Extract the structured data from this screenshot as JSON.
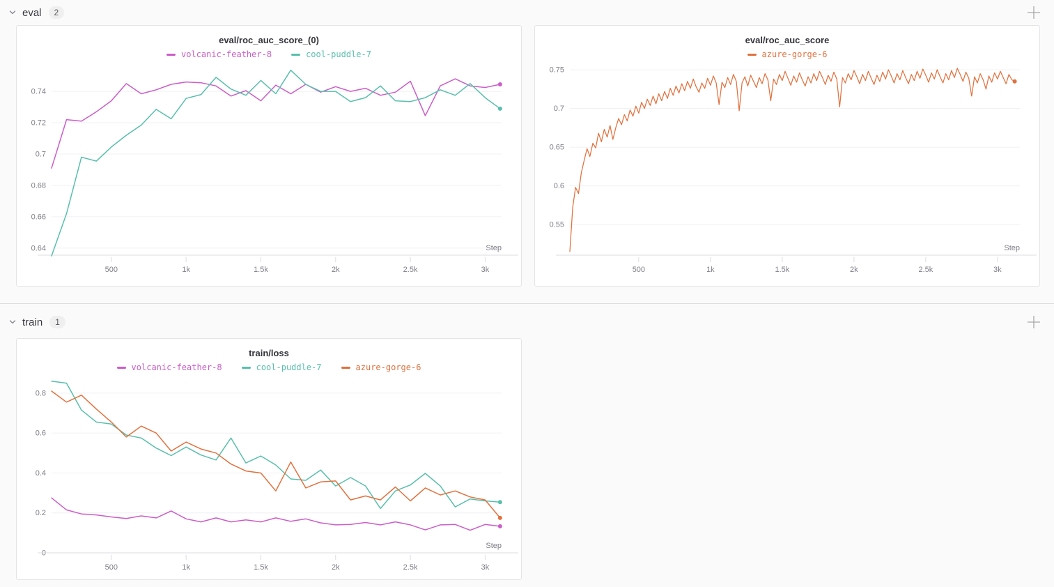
{
  "colors": {
    "page_bg": "#fafafa",
    "panel_border": "#e4e4e7",
    "grid": "#f0f0f3",
    "axis": "#dcdce1",
    "tick_text": "#7e7e88",
    "run_magenta": "#CB5DC8",
    "run_teal": "#58BFAC",
    "run_orange": "#E1713E"
  },
  "icons": {
    "chevron_down": "chevron-down-icon",
    "plus": "plus-icon"
  },
  "sections": [
    {
      "title": "eval",
      "count": "2"
    },
    {
      "title": "train",
      "count": "1"
    }
  ],
  "chart_data": [
    {
      "type": "line",
      "title": "eval/roc_auc_score_(0)",
      "xlabel": "Step",
      "grid": "horizontal",
      "legend_position": "top",
      "x_axis_range": [
        100,
        3110
      ],
      "x_ticks": [
        500,
        1000,
        1500,
        2000,
        2500,
        3000
      ],
      "x_tick_labels": [
        "500",
        "1k",
        "1.5k",
        "2k",
        "2.5k",
        "3k"
      ],
      "ylim": [
        0.6355,
        0.7565
      ],
      "y_ticks": [
        0.64,
        0.66,
        0.68,
        0.7,
        0.72,
        0.74
      ],
      "y_tick_labels": [
        "0.64",
        "0.66",
        "0.68",
        "0.7",
        "0.72",
        "0.74"
      ],
      "series": [
        {
          "name": "volcanic-feather-8",
          "color": "#CB5DC8",
          "x_range": [
            100,
            3100
          ],
          "values": [
            0.691,
            0.722,
            0.721,
            0.727,
            0.734,
            0.745,
            0.7385,
            0.741,
            0.7445,
            0.746,
            0.7455,
            0.7435,
            0.737,
            0.7405,
            0.734,
            0.744,
            0.7385,
            0.7445,
            0.7395,
            0.743,
            0.74,
            0.742,
            0.7375,
            0.7395,
            0.7465,
            0.7245,
            0.7435,
            0.748,
            0.7435,
            0.7425,
            0.7445
          ]
        },
        {
          "name": "cool-puddle-7",
          "color": "#58BFAC",
          "x_range": [
            100,
            3100
          ],
          "values": [
            0.635,
            0.662,
            0.698,
            0.6955,
            0.7045,
            0.712,
            0.7185,
            0.7285,
            0.7225,
            0.7355,
            0.738,
            0.749,
            0.7415,
            0.7375,
            0.747,
            0.7385,
            0.7535,
            0.7445,
            0.74,
            0.74,
            0.7335,
            0.736,
            0.7435,
            0.734,
            0.7335,
            0.736,
            0.741,
            0.7375,
            0.745,
            0.736,
            0.729
          ]
        }
      ]
    },
    {
      "type": "line",
      "title": "eval/roc_auc_score",
      "xlabel": "Step",
      "grid": "horizontal",
      "legend_position": "top",
      "x_axis_range": [
        20,
        3156
      ],
      "x_ticks": [
        500,
        1000,
        1500,
        2000,
        2500,
        3000
      ],
      "x_tick_labels": [
        "500",
        "1k",
        "1.5k",
        "2k",
        "2.5k",
        "3k"
      ],
      "ylim": [
        0.5104,
        0.7555
      ],
      "y_ticks": [
        0.55,
        0.6,
        0.65,
        0.7,
        0.75
      ],
      "y_tick_labels": [
        "0.55",
        "0.6",
        "0.65",
        "0.7",
        "0.75"
      ],
      "series": [
        {
          "name": "azure-gorge-6",
          "color": "#E1713E",
          "x_range": [
            20,
            3120
          ],
          "values": [
            0.515,
            0.572,
            0.598,
            0.59,
            0.617,
            0.633,
            0.648,
            0.638,
            0.655,
            0.649,
            0.668,
            0.657,
            0.673,
            0.663,
            0.678,
            0.66,
            0.675,
            0.687,
            0.679,
            0.692,
            0.684,
            0.698,
            0.69,
            0.703,
            0.694,
            0.708,
            0.7,
            0.712,
            0.704,
            0.716,
            0.706,
            0.719,
            0.71,
            0.722,
            0.713,
            0.726,
            0.717,
            0.729,
            0.72,
            0.732,
            0.723,
            0.735,
            0.726,
            0.738,
            0.728,
            0.721,
            0.733,
            0.726,
            0.739,
            0.73,
            0.742,
            0.733,
            0.705,
            0.734,
            0.727,
            0.74,
            0.731,
            0.744,
            0.735,
            0.697,
            0.733,
            0.741,
            0.729,
            0.743,
            0.735,
            0.727,
            0.74,
            0.732,
            0.745,
            0.737,
            0.71,
            0.738,
            0.731,
            0.744,
            0.736,
            0.748,
            0.739,
            0.73,
            0.742,
            0.734,
            0.746,
            0.737,
            0.729,
            0.741,
            0.733,
            0.745,
            0.736,
            0.748,
            0.74,
            0.731,
            0.743,
            0.735,
            0.747,
            0.738,
            0.702,
            0.74,
            0.733,
            0.745,
            0.737,
            0.749,
            0.741,
            0.732,
            0.744,
            0.736,
            0.748,
            0.739,
            0.731,
            0.743,
            0.735,
            0.747,
            0.738,
            0.75,
            0.742,
            0.733,
            0.745,
            0.737,
            0.749,
            0.74,
            0.732,
            0.744,
            0.736,
            0.748,
            0.739,
            0.751,
            0.743,
            0.734,
            0.746,
            0.738,
            0.75,
            0.741,
            0.733,
            0.745,
            0.737,
            0.749,
            0.74,
            0.752,
            0.744,
            0.735,
            0.747,
            0.739,
            0.716,
            0.741,
            0.733,
            0.745,
            0.737,
            0.725,
            0.742,
            0.734,
            0.746,
            0.738,
            0.748,
            0.74,
            0.732,
            0.744,
            0.737,
            0.735
          ]
        }
      ]
    },
    {
      "type": "line",
      "title": "train/loss",
      "xlabel": "Step",
      "grid": "horizontal",
      "legend_position": "top",
      "x_axis_range": [
        100,
        3110
      ],
      "x_ticks": [
        500,
        1000,
        1500,
        2000,
        2500,
        3000
      ],
      "x_tick_labels": [
        "500",
        "1k",
        "1.5k",
        "2k",
        "2.5k",
        "3k"
      ],
      "ylim": [
        0,
        0.873
      ],
      "y_ticks": [
        0,
        0.2,
        0.4,
        0.6,
        0.8
      ],
      "y_tick_labels": [
        "0",
        "0.2",
        "0.4",
        "0.6",
        "0.8"
      ],
      "series": [
        {
          "name": "volcanic-feather-8",
          "color": "#CB5DC8",
          "x_range": [
            100,
            3100
          ],
          "values": [
            0.275,
            0.215,
            0.195,
            0.19,
            0.18,
            0.172,
            0.185,
            0.175,
            0.21,
            0.17,
            0.155,
            0.175,
            0.155,
            0.165,
            0.155,
            0.175,
            0.158,
            0.17,
            0.15,
            0.14,
            0.142,
            0.152,
            0.14,
            0.155,
            0.14,
            0.115,
            0.14,
            0.142,
            0.113,
            0.142,
            0.133
          ]
        },
        {
          "name": "cool-puddle-7",
          "color": "#58BFAC",
          "x_range": [
            100,
            3100
          ],
          "values": [
            0.86,
            0.85,
            0.715,
            0.655,
            0.645,
            0.59,
            0.575,
            0.525,
            0.487,
            0.53,
            0.49,
            0.465,
            0.575,
            0.45,
            0.485,
            0.44,
            0.37,
            0.363,
            0.415,
            0.335,
            0.377,
            0.335,
            0.222,
            0.31,
            0.34,
            0.398,
            0.335,
            0.23,
            0.27,
            0.26,
            0.254
          ]
        },
        {
          "name": "azure-gorge-6",
          "color": "#E1713E",
          "x_range": [
            100,
            3100
          ],
          "values": [
            0.81,
            0.755,
            0.79,
            0.72,
            0.655,
            0.58,
            0.635,
            0.6,
            0.51,
            0.555,
            0.52,
            0.5,
            0.445,
            0.41,
            0.4,
            0.31,
            0.455,
            0.325,
            0.355,
            0.36,
            0.265,
            0.285,
            0.265,
            0.33,
            0.26,
            0.325,
            0.29,
            0.31,
            0.28,
            0.265,
            0.175
          ]
        }
      ]
    }
  ]
}
